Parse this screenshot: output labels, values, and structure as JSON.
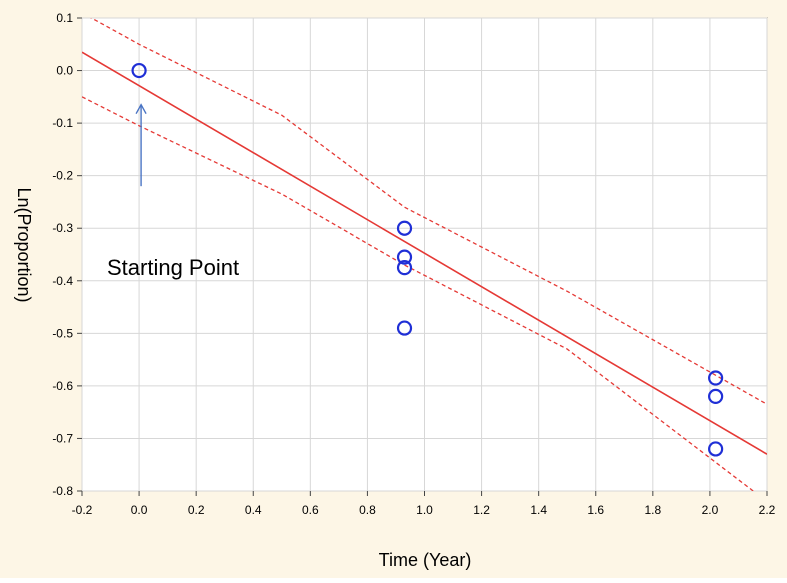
{
  "chart_data": {
    "type": "scatter",
    "title": "",
    "xlabel": "Time (Year)",
    "ylabel": "Ln(Proportion)",
    "xlim": [
      -0.2,
      2.2
    ],
    "ylim": [
      -0.8,
      0.1
    ],
    "x_ticks": [
      -0.2,
      0.0,
      0.2,
      0.4,
      0.6,
      0.8,
      1.0,
      1.2,
      1.4,
      1.6,
      1.8,
      2.0,
      2.2
    ],
    "x_tick_labels": [
      "-0.2",
      "0.0",
      "0.2",
      "0.4",
      "0.6",
      "0.8",
      "1.0",
      "1.2",
      "1.4",
      "1.6",
      "1.8",
      "2.0",
      "2.2"
    ],
    "y_ticks": [
      0.1,
      0.0,
      -0.1,
      -0.2,
      -0.3,
      -0.4,
      -0.5,
      -0.6,
      -0.7,
      -0.8
    ],
    "y_tick_labels": [
      "0.1",
      "0.0",
      "-0.1",
      "-0.2",
      "-0.3",
      "-0.4",
      "-0.5",
      "-0.6",
      "-0.7",
      "-0.8"
    ],
    "grid": true,
    "points": [
      {
        "x": 0.0,
        "y": 0.0
      },
      {
        "x": 0.93,
        "y": -0.3
      },
      {
        "x": 0.93,
        "y": -0.355
      },
      {
        "x": 0.93,
        "y": -0.375
      },
      {
        "x": 0.93,
        "y": -0.49
      },
      {
        "x": 2.02,
        "y": -0.585
      },
      {
        "x": 2.02,
        "y": -0.62
      },
      {
        "x": 2.02,
        "y": -0.72
      }
    ],
    "fit_line": {
      "x": [
        -0.2,
        2.2
      ],
      "y": [
        0.035,
        -0.73
      ]
    },
    "confidence_upper": {
      "x": [
        -0.2,
        0.0,
        0.5,
        0.93,
        1.5,
        2.2
      ],
      "y": [
        0.11,
        0.05,
        -0.085,
        -0.26,
        -0.42,
        -0.635
      ]
    },
    "confidence_lower": {
      "x": [
        -0.2,
        0.0,
        0.5,
        0.93,
        1.5,
        2.2
      ],
      "y": [
        -0.05,
        -0.105,
        -0.235,
        -0.37,
        -0.53,
        -0.82
      ]
    },
    "colors": {
      "points": "#1f2fd6",
      "fit": "#e53935",
      "arrow": "#4a74c4",
      "panel": "#fdf6e6"
    },
    "annotations": [
      {
        "text": "Starting Point",
        "arrow_to": {
          "x": 0.0,
          "y": -0.065
        },
        "arrow_from": {
          "x": 0.0,
          "y": -0.22
        }
      }
    ]
  }
}
